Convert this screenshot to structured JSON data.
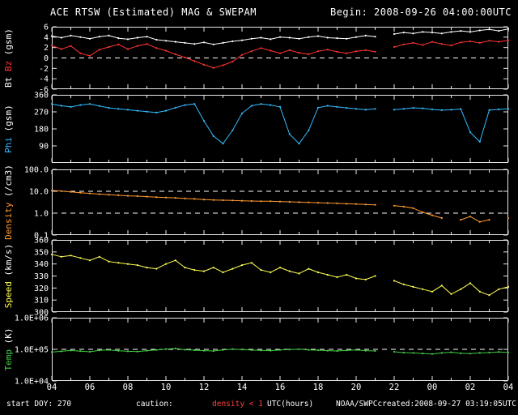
{
  "header": {
    "title": "ACE RTSW (Estimated) MAG & SWEPAM",
    "begin": "Begin: 2008-09-26 04:00:00UTC"
  },
  "footer": {
    "start_doy": "start DOY: 270",
    "caution_label": "caution:",
    "caution_value": "density < 1",
    "agency": "NOAA/SWPC",
    "created": "created:2008-09-27 03:19:05UTC"
  },
  "colors": {
    "background": "#000000",
    "frame": "#e8e8e8",
    "dashed_reference": "#ffffff",
    "caution_text": "#ff4040"
  },
  "chart_data": {
    "type": "line",
    "title": "ACE RTSW (Estimated) MAG & SWEPAM",
    "begin_label": "Begin: 2008-09-26 04:00:00UTC",
    "x": {
      "label": "UTC(hours)",
      "start_hour": 4,
      "end_hour": 28,
      "step_hours": 0.5,
      "tick_labels": [
        "04",
        "06",
        "08",
        "10",
        "12",
        "14",
        "16",
        "18",
        "20",
        "22",
        "00",
        "02",
        "04"
      ]
    },
    "panels": [
      {
        "id": "bt-bz",
        "plot_style": "line+points",
        "scale": "linear",
        "ylim": [
          -6,
          6
        ],
        "ytick_values": [
          6,
          4,
          2,
          0,
          -2,
          -4,
          -6
        ],
        "ytick_labels": [
          "6",
          "4",
          "2",
          "0",
          "-2",
          "-4",
          "-6"
        ],
        "dashed": [
          0
        ],
        "ylabel_parts": [
          {
            "text": "Bt",
            "color": "#ffffff"
          },
          {
            "text": "Bz",
            "color": "#ff3333"
          },
          {
            "text": "(gsm)",
            "color": "#ffffff"
          }
        ],
        "series": [
          {
            "name": "Bt",
            "color": "#ffffff",
            "values": [
              4.2,
              3.9,
              4.3,
              4.0,
              3.7,
              4.1,
              4.3,
              3.8,
              3.6,
              3.9,
              4.1,
              3.5,
              3.3,
              3.1,
              2.9,
              2.7,
              3.0,
              2.6,
              2.9,
              3.2,
              3.4,
              3.7,
              3.9,
              3.6,
              4.0,
              3.9,
              3.7,
              4.0,
              4.2,
              3.9,
              3.8,
              3.7,
              4.0,
              4.3,
              4.1,
              null,
              4.6,
              4.9,
              4.7,
              5.0,
              4.9,
              4.7,
              5.0,
              5.2,
              5.0,
              5.3,
              5.5,
              5.2,
              5.6
            ]
          },
          {
            "name": "Bz",
            "color": "#ff3333",
            "values": [
              2.4,
              1.7,
              2.3,
              0.9,
              0.4,
              1.6,
              2.1,
              2.6,
              1.7,
              2.3,
              2.7,
              1.9,
              1.4,
              0.7,
              0.1,
              -0.6,
              -1.3,
              -1.9,
              -1.4,
              -0.7,
              0.6,
              1.3,
              1.9,
              1.4,
              0.9,
              1.5,
              1.0,
              0.7,
              1.3,
              1.6,
              1.2,
              0.9,
              1.3,
              1.5,
              1.2,
              null,
              2.1,
              2.6,
              2.9,
              2.5,
              3.1,
              2.7,
              2.4,
              3.0,
              3.2,
              2.9,
              3.3,
              3.1,
              3.4
            ]
          }
        ]
      },
      {
        "id": "phi",
        "plot_style": "line+points",
        "scale": "linear",
        "ylim": [
          0,
          360
        ],
        "ytick_values": [
          360,
          270,
          180,
          90
        ],
        "ytick_labels": [
          "360",
          "270",
          "180",
          "90"
        ],
        "dashed": [],
        "ylabel_parts": [
          {
            "text": "Phi",
            "color": "#33bbff"
          },
          {
            "text": "(gsm)",
            "color": "#ffffff"
          }
        ],
        "series": [
          {
            "name": "Phi",
            "color": "#33bbff",
            "values": [
              312,
              302,
              296,
              306,
              312,
              301,
              291,
              286,
              281,
              276,
              271,
              266,
              276,
              292,
              306,
              312,
              222,
              142,
              102,
              172,
              262,
              302,
              312,
              306,
              296,
              152,
              102,
              172,
              292,
              302,
              296,
              291,
              286,
              281,
              286,
              null,
              281,
              286,
              291,
              289,
              283,
              279,
              281,
              285,
              162,
              112,
              279,
              283,
              286
            ]
          }
        ]
      },
      {
        "id": "density",
        "plot_style": "line+points",
        "scale": "log",
        "ylim": [
          0.1,
          100
        ],
        "ytick_values": [
          100,
          10,
          1,
          0.1
        ],
        "ytick_labels": [
          "100.0",
          "10.0",
          "1.0",
          "0.1"
        ],
        "dashed": [
          10,
          1
        ],
        "ylabel_parts": [
          {
            "text": "Density",
            "color": "#ff9933"
          },
          {
            "text": "(/cm3)",
            "color": "#ffffff"
          }
        ],
        "series": [
          {
            "name": "Density",
            "color": "#ff9933",
            "values": [
              11,
              10.2,
              9.4,
              8.6,
              8.0,
              7.4,
              7.0,
              6.6,
              6.2,
              6.0,
              5.7,
              5.4,
              5.2,
              5.0,
              4.7,
              4.5,
              4.2,
              4.0,
              3.9,
              3.8,
              3.7,
              3.6,
              3.5,
              3.5,
              3.4,
              3.3,
              3.2,
              3.1,
              3.0,
              2.9,
              2.8,
              2.7,
              2.6,
              2.5,
              2.4,
              null,
              2.2,
              2.0,
              1.7,
              1.1,
              0.8,
              0.6,
              null,
              0.5,
              0.7,
              0.4,
              0.5,
              null,
              0.6
            ]
          }
        ]
      },
      {
        "id": "speed",
        "plot_style": "line+points",
        "scale": "linear",
        "ylim": [
          300,
          360
        ],
        "ytick_values": [
          360,
          350,
          340,
          330,
          320,
          310,
          300
        ],
        "ytick_labels": [
          "360",
          "350",
          "340",
          "330",
          "320",
          "310",
          "300"
        ],
        "dashed": [],
        "ylabel_parts": [
          {
            "text": "Speed",
            "color": "#ffff55"
          },
          {
            "text": "(km/s)",
            "color": "#ffffff"
          }
        ],
        "series": [
          {
            "name": "Speed",
            "color": "#ffff55",
            "values": [
              348,
              346,
              347,
              345,
              343,
              346,
              342,
              341,
              340,
              339,
              337,
              336,
              340,
              343,
              337,
              335,
              334,
              337,
              333,
              336,
              339,
              341,
              335,
              333,
              337,
              334,
              332,
              336,
              333,
              331,
              329,
              331,
              328,
              327,
              330,
              null,
              326,
              323,
              321,
              319,
              317,
              322,
              315,
              319,
              324,
              317,
              314,
              319,
              321
            ]
          }
        ]
      },
      {
        "id": "temp",
        "plot_style": "line+points",
        "scale": "log",
        "ylim": [
          10000,
          1000000
        ],
        "ytick_values": [
          1000000,
          100000,
          10000
        ],
        "ytick_labels": [
          "1.0E+06",
          "1.0E+05",
          "1.0E+04"
        ],
        "dashed": [
          100000
        ],
        "ylabel_parts": [
          {
            "text": "Temp",
            "color": "#44cc44"
          },
          {
            "text": "(K)",
            "color": "#ffffff"
          }
        ],
        "series": [
          {
            "name": "Temp",
            "color": "#44cc44",
            "values": [
              82000,
              87000,
              92000,
              88000,
              84000,
              93000,
              96000,
              90000,
              87000,
              85000,
              91000,
              96000,
              102000,
              107000,
              97000,
              94000,
              91000,
              89000,
              96000,
              102000,
              99000,
              95000,
              93000,
              91000,
              96000,
              99000,
              101000,
              96000,
              94000,
              91000,
              89000,
              93000,
              96000,
              91000,
              89000,
              null,
              84000,
              79000,
              77000,
              74000,
              71000,
              77000,
              81000,
              75000,
              73000,
              77000,
              79000,
              83000,
              80000
            ]
          }
        ]
      }
    ]
  }
}
